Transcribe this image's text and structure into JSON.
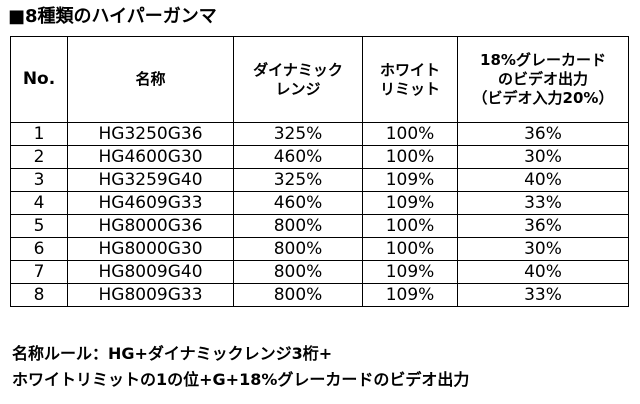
{
  "title": "■8種類のハイパーガンマ",
  "table": {
    "headers": {
      "no": "No.",
      "name": "名称",
      "dynamic_range": [
        "ダイナミック",
        "レンジ"
      ],
      "white_limit": [
        "ホワイト",
        "リミット"
      ],
      "gray_output": [
        "18%グレーカード",
        "のビデオ出力",
        "（ビデオ入力20%）"
      ]
    },
    "rows": [
      {
        "no": "1",
        "name": "HG3250G36",
        "dynamic_range": "325%",
        "white_limit": "100%",
        "gray_output": "36%"
      },
      {
        "no": "2",
        "name": "HG4600G30",
        "dynamic_range": "460%",
        "white_limit": "100%",
        "gray_output": "30%"
      },
      {
        "no": "3",
        "name": "HG3259G40",
        "dynamic_range": "325%",
        "white_limit": "109%",
        "gray_output": "40%"
      },
      {
        "no": "4",
        "name": "HG4609G33",
        "dynamic_range": "460%",
        "white_limit": "109%",
        "gray_output": "33%"
      },
      {
        "no": "5",
        "name": "HG8000G36",
        "dynamic_range": "800%",
        "white_limit": "100%",
        "gray_output": "36%"
      },
      {
        "no": "6",
        "name": "HG8000G30",
        "dynamic_range": "800%",
        "white_limit": "100%",
        "gray_output": "30%"
      },
      {
        "no": "7",
        "name": "HG8009G40",
        "dynamic_range": "800%",
        "white_limit": "109%",
        "gray_output": "40%"
      },
      {
        "no": "8",
        "name": "HG8009G33",
        "dynamic_range": "800%",
        "white_limit": "109%",
        "gray_output": "33%"
      }
    ]
  },
  "footer": {
    "line1": "名称ルール：HG+ダイナミックレンジ3桁+",
    "line2": "ホワイトリミットの1の位+G+18%グレーカードのビデオ出力"
  }
}
